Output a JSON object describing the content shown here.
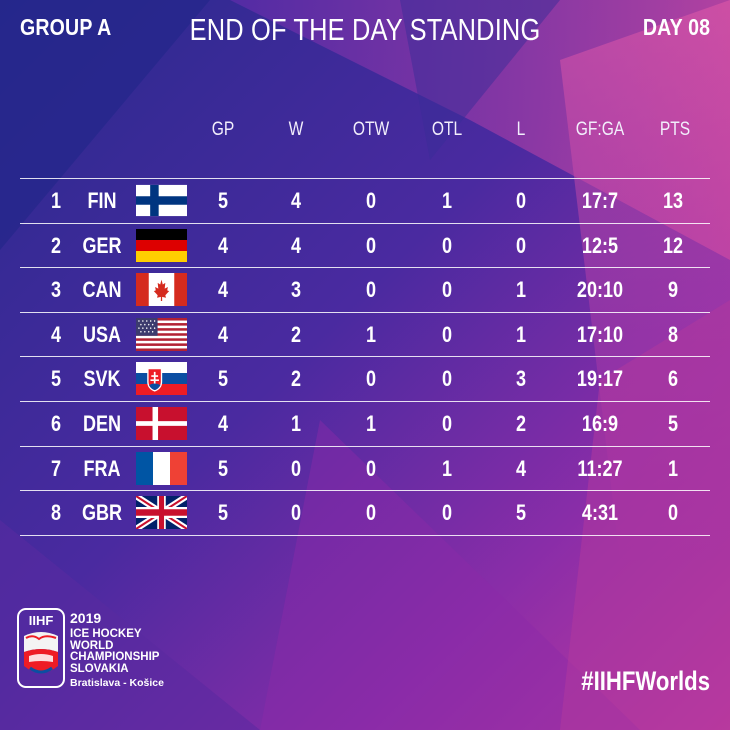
{
  "header": {
    "group": "GROUP A",
    "title": "END OF THE DAY STANDING",
    "day": "DAY 08"
  },
  "columns": [
    "GP",
    "W",
    "OTW",
    "OTL",
    "L",
    "GF:GA",
    "PTS"
  ],
  "standings": [
    {
      "rank": "1",
      "team": "FIN",
      "flag": "finland-flag",
      "gp": "5",
      "w": "4",
      "otw": "0",
      "otl": "1",
      "l": "0",
      "gfga": "17:7",
      "pts": "13"
    },
    {
      "rank": "2",
      "team": "GER",
      "flag": "germany-flag",
      "gp": "4",
      "w": "4",
      "otw": "0",
      "otl": "0",
      "l": "0",
      "gfga": "12:5",
      "pts": "12"
    },
    {
      "rank": "3",
      "team": "CAN",
      "flag": "canada-flag",
      "gp": "4",
      "w": "3",
      "otw": "0",
      "otl": "0",
      "l": "1",
      "gfga": "20:10",
      "pts": "9"
    },
    {
      "rank": "4",
      "team": "USA",
      "flag": "usa-flag",
      "gp": "4",
      "w": "2",
      "otw": "1",
      "otl": "0",
      "l": "1",
      "gfga": "17:10",
      "pts": "8"
    },
    {
      "rank": "5",
      "team": "SVK",
      "flag": "slovakia-flag",
      "gp": "5",
      "w": "2",
      "otw": "0",
      "otl": "0",
      "l": "3",
      "gfga": "19:17",
      "pts": "6"
    },
    {
      "rank": "6",
      "team": "DEN",
      "flag": "denmark-flag",
      "gp": "4",
      "w": "1",
      "otw": "1",
      "otl": "0",
      "l": "2",
      "gfga": "16:9",
      "pts": "5"
    },
    {
      "rank": "7",
      "team": "FRA",
      "flag": "france-flag",
      "gp": "5",
      "w": "0",
      "otw": "0",
      "otl": "1",
      "l": "4",
      "gfga": "11:27",
      "pts": "1"
    },
    {
      "rank": "8",
      "team": "GBR",
      "flag": "great-britain-flag",
      "gp": "5",
      "w": "0",
      "otw": "0",
      "otl": "0",
      "l": "5",
      "gfga": "4:31",
      "pts": "0"
    }
  ],
  "footer": {
    "logo_text": "IIHF",
    "year": "2019",
    "line1": "ICE HOCKEY",
    "line2": "WORLD",
    "line3": "CHAMPIONSHIP",
    "line4": "SLOVAKIA",
    "city": "Bratislava - Košice",
    "hashtag": "#IIHFWorlds"
  },
  "colors": {
    "background_dark": "#2b2a8c",
    "background_mid": "#6a2aa3",
    "background_pink": "#d0409e",
    "text": "#ffffff"
  }
}
